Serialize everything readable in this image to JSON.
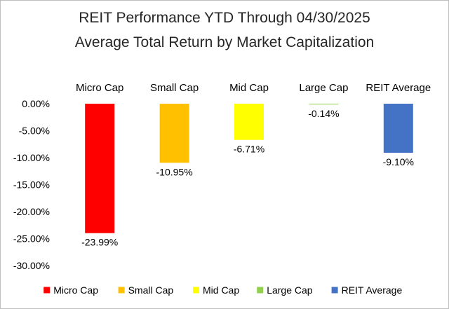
{
  "chart_data": {
    "type": "bar",
    "title": "REIT Performance YTD Through 04/30/2025",
    "subtitle": "Average Total Return by Market Capitalization",
    "categories": [
      "Micro Cap",
      "Small Cap",
      "Mid Cap",
      "Large Cap",
      "REIT Average"
    ],
    "values": [
      -23.99,
      -10.95,
      -6.71,
      -0.14,
      -9.1
    ],
    "data_labels": [
      "-23.99%",
      "-10.95%",
      "-6.71%",
      "-0.14%",
      "-9.10%"
    ],
    "colors": [
      "#ff0000",
      "#ffc000",
      "#ffff00",
      "#92d050",
      "#4472c4"
    ],
    "ylim": [
      -30,
      0
    ],
    "yticks": [
      0,
      -5,
      -10,
      -15,
      -20,
      -25,
      -30
    ],
    "ytick_labels": [
      "0.00%",
      "-5.00%",
      "-10.00%",
      "-15.00%",
      "-20.00%",
      "-25.00%",
      "-30.00%"
    ],
    "category_axis_position": "top",
    "grid": false,
    "legend": {
      "position": "bottom",
      "entries": [
        "Micro Cap",
        "Small Cap",
        "Mid Cap",
        "Large Cap",
        "REIT Average"
      ]
    }
  }
}
